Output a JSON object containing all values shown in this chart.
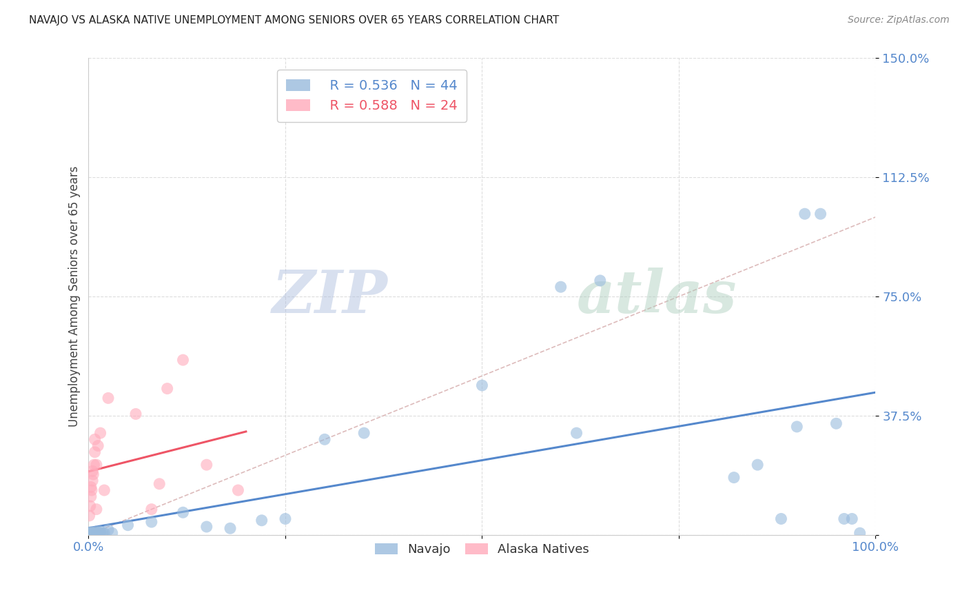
{
  "title": "NAVAJO VS ALASKA NATIVE UNEMPLOYMENT AMONG SENIORS OVER 65 YEARS CORRELATION CHART",
  "source": "Source: ZipAtlas.com",
  "ylabel": "Unemployment Among Seniors over 65 years",
  "xlim": [
    0,
    1.0
  ],
  "ylim": [
    0,
    1.5
  ],
  "xticks": [
    0.0,
    0.25,
    0.5,
    0.75,
    1.0
  ],
  "xtick_labels": [
    "0.0%",
    "",
    "",
    "",
    "100.0%"
  ],
  "yticks": [
    0.0,
    0.375,
    0.75,
    1.125,
    1.5
  ],
  "ytick_labels": [
    "",
    "37.5%",
    "75.0%",
    "112.5%",
    "150.0%"
  ],
  "navajo_R": 0.536,
  "navajo_N": 44,
  "alaska_R": 0.588,
  "alaska_N": 24,
  "navajo_color": "#99BBDD",
  "alaska_color": "#FFAABB",
  "navajo_line_color": "#5588CC",
  "alaska_line_color": "#EE5566",
  "tick_color": "#5588CC",
  "watermark_zip": "ZIP",
  "watermark_atlas": "atlas",
  "watermark_color_zip": "#AABBDD",
  "watermark_color_atlas": "#AACCBB",
  "grid_color": "#DDDDDD",
  "diag_color": "#DDBBBB",
  "nav_x": [
    0.001,
    0.002,
    0.003,
    0.003,
    0.004,
    0.004,
    0.005,
    0.005,
    0.006,
    0.007,
    0.008,
    0.009,
    0.01,
    0.01,
    0.012,
    0.015,
    0.015,
    0.018,
    0.02,
    0.025,
    0.03,
    0.05,
    0.08,
    0.12,
    0.15,
    0.18,
    0.22,
    0.25,
    0.3,
    0.35,
    0.5,
    0.6,
    0.62,
    0.65,
    0.82,
    0.85,
    0.88,
    0.9,
    0.91,
    0.93,
    0.95,
    0.96,
    0.97,
    0.98
  ],
  "nav_y": [
    0.005,
    0.005,
    0.005,
    0.008,
    0.003,
    0.005,
    0.003,
    0.005,
    0.005,
    0.003,
    0.005,
    0.003,
    0.005,
    0.01,
    0.003,
    0.005,
    0.01,
    0.005,
    0.005,
    0.015,
    0.005,
    0.03,
    0.04,
    0.07,
    0.025,
    0.02,
    0.045,
    0.05,
    0.3,
    0.32,
    0.47,
    0.78,
    0.32,
    0.8,
    0.18,
    0.22,
    0.05,
    0.34,
    1.01,
    1.01,
    0.35,
    0.05,
    0.05,
    0.005
  ],
  "ala_x": [
    0.001,
    0.002,
    0.003,
    0.003,
    0.004,
    0.005,
    0.005,
    0.006,
    0.007,
    0.008,
    0.008,
    0.01,
    0.01,
    0.012,
    0.015,
    0.02,
    0.025,
    0.06,
    0.08,
    0.09,
    0.1,
    0.12,
    0.15,
    0.19
  ],
  "ala_y": [
    0.06,
    0.09,
    0.12,
    0.15,
    0.14,
    0.17,
    0.2,
    0.19,
    0.22,
    0.26,
    0.3,
    0.08,
    0.22,
    0.28,
    0.32,
    0.14,
    0.43,
    0.38,
    0.08,
    0.16,
    0.46,
    0.55,
    0.22,
    0.14
  ]
}
